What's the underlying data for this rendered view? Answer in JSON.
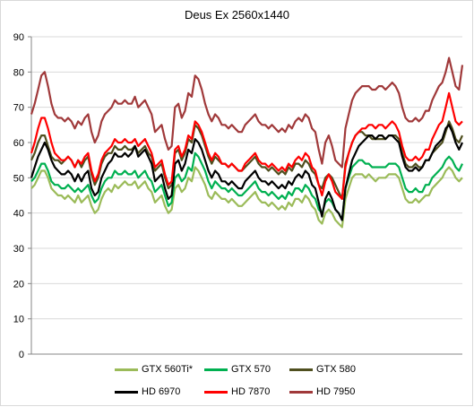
{
  "chart_data": {
    "type": "line",
    "title": "Deus Ex 2560x1440",
    "xlabel": "",
    "ylabel": "",
    "ylim": [
      0,
      90
    ],
    "yticks": [
      "0",
      "10",
      "20",
      "30",
      "40",
      "50",
      "60",
      "70",
      "80",
      "90"
    ],
    "grid": true,
    "legend_position": "bottom",
    "series": [
      {
        "name": "GTX 560Ti*",
        "color": "#9bbb59",
        "values": [
          47,
          48,
          50,
          52,
          52,
          50,
          47,
          46,
          45,
          45,
          44,
          45,
          44,
          43,
          45,
          43,
          44,
          45,
          42,
          40,
          41,
          44,
          46,
          47,
          46,
          48,
          47,
          48,
          49,
          48,
          48,
          49,
          47,
          48,
          49,
          47,
          46,
          43,
          44,
          45,
          42,
          40,
          41,
          47,
          48,
          46,
          47,
          50,
          49,
          53,
          52,
          50,
          48,
          45,
          44,
          46,
          45,
          44,
          44,
          43,
          44,
          43,
          42,
          42,
          43,
          44,
          45,
          46,
          44,
          43,
          43,
          42,
          43,
          42,
          41,
          42,
          41,
          43,
          42,
          44,
          44,
          43,
          45,
          44,
          42,
          41,
          38,
          37,
          40,
          41,
          40,
          38,
          37,
          36,
          44,
          47,
          50,
          51,
          51,
          51,
          50,
          51,
          50,
          49,
          50,
          50,
          50,
          51,
          51,
          51,
          50,
          47,
          44,
          43,
          43,
          44,
          43,
          44,
          45,
          45,
          47,
          48,
          49,
          50,
          52,
          53,
          52,
          50,
          49,
          50
        ]
      },
      {
        "name": "GTX 570",
        "color": "#00b050",
        "values": [
          49,
          50,
          52,
          54,
          54,
          52,
          49,
          48,
          48,
          47,
          47,
          48,
          47,
          46,
          47,
          46,
          47,
          48,
          45,
          43,
          44,
          47,
          49,
          50,
          50,
          52,
          51,
          51,
          52,
          51,
          51,
          52,
          50,
          51,
          52,
          50,
          49,
          46,
          47,
          48,
          45,
          42,
          43,
          50,
          51,
          49,
          50,
          53,
          52,
          57,
          56,
          54,
          52,
          49,
          47,
          49,
          48,
          47,
          47,
          46,
          47,
          46,
          45,
          45,
          46,
          47,
          48,
          49,
          47,
          46,
          46,
          45,
          46,
          45,
          44,
          45,
          44,
          46,
          45,
          47,
          47,
          46,
          48,
          47,
          45,
          44,
          41,
          40,
          43,
          44,
          43,
          41,
          40,
          38,
          47,
          50,
          53,
          54,
          55,
          55,
          54,
          54,
          53,
          53,
          53,
          53,
          53,
          54,
          54,
          54,
          53,
          50,
          47,
          46,
          46,
          47,
          46,
          46,
          48,
          48,
          50,
          51,
          52,
          53,
          55,
          56,
          55,
          53,
          52,
          54
        ]
      },
      {
        "name": "GTX 580",
        "color": "#4f4f1f",
        "values": [
          55,
          57,
          60,
          62,
          62,
          59,
          56,
          55,
          55,
          54,
          55,
          56,
          55,
          53,
          55,
          53,
          55,
          56,
          51,
          48,
          50,
          54,
          56,
          57,
          57,
          59,
          58,
          58,
          59,
          58,
          58,
          59,
          57,
          58,
          59,
          57,
          56,
          52,
          53,
          54,
          50,
          47,
          48,
          57,
          58,
          55,
          57,
          61,
          60,
          65,
          64,
          62,
          59,
          56,
          54,
          56,
          55,
          54,
          54,
          53,
          54,
          53,
          52,
          52,
          53,
          54,
          55,
          56,
          54,
          53,
          53,
          52,
          53,
          52,
          51,
          52,
          51,
          53,
          52,
          54,
          54,
          53,
          55,
          54,
          52,
          51,
          48,
          47,
          50,
          51,
          50,
          48,
          46,
          44,
          54,
          57,
          60,
          62,
          63,
          63,
          62,
          62,
          61,
          61,
          61,
          61,
          61,
          62,
          62,
          62,
          61,
          57,
          54,
          53,
          53,
          54,
          53,
          53,
          55,
          55,
          57,
          58,
          59,
          60,
          63,
          66,
          64,
          61,
          60,
          62
        ]
      },
      {
        "name": "HD 6970",
        "color": "#000000",
        "values": [
          50,
          53,
          56,
          58,
          60,
          58,
          55,
          53,
          52,
          51,
          51,
          52,
          51,
          49,
          51,
          49,
          51,
          52,
          47,
          45,
          46,
          50,
          52,
          54,
          55,
          57,
          56,
          56,
          57,
          56,
          57,
          59,
          56,
          57,
          58,
          56,
          54,
          49,
          50,
          51,
          47,
          44,
          45,
          54,
          55,
          52,
          54,
          58,
          57,
          61,
          60,
          58,
          55,
          52,
          50,
          52,
          51,
          49,
          49,
          48,
          49,
          48,
          47,
          47,
          49,
          50,
          51,
          52,
          50,
          49,
          49,
          48,
          49,
          48,
          47,
          48,
          47,
          49,
          48,
          50,
          51,
          50,
          52,
          51,
          48,
          47,
          43,
          39,
          44,
          46,
          44,
          41,
          40,
          38,
          47,
          51,
          55,
          57,
          59,
          60,
          61,
          62,
          62,
          61,
          62,
          62,
          61,
          62,
          62,
          61,
          60,
          56,
          53,
          52,
          52,
          53,
          52,
          53,
          55,
          55,
          57,
          59,
          60,
          61,
          64,
          65,
          63,
          60,
          58,
          60
        ]
      },
      {
        "name": "HD 7870",
        "color": "#ff0000",
        "values": [
          57,
          60,
          64,
          67,
          67,
          64,
          60,
          57,
          56,
          55,
          55,
          56,
          55,
          53,
          55,
          54,
          56,
          57,
          52,
          49,
          51,
          55,
          57,
          58,
          59,
          61,
          60,
          60,
          61,
          60,
          60,
          61,
          59,
          60,
          61,
          59,
          57,
          53,
          54,
          55,
          51,
          48,
          49,
          58,
          59,
          56,
          58,
          62,
          61,
          66,
          65,
          63,
          60,
          57,
          55,
          57,
          56,
          54,
          54,
          53,
          54,
          53,
          52,
          52,
          54,
          55,
          56,
          57,
          55,
          54,
          54,
          53,
          54,
          53,
          52,
          53,
          52,
          54,
          53,
          55,
          56,
          55,
          57,
          56,
          53,
          52,
          48,
          45,
          49,
          51,
          49,
          46,
          45,
          44,
          53,
          57,
          60,
          62,
          63,
          64,
          64,
          65,
          65,
          64,
          65,
          65,
          64,
          65,
          66,
          65,
          63,
          59,
          56,
          55,
          55,
          56,
          55,
          56,
          58,
          58,
          61,
          63,
          65,
          66,
          70,
          74,
          70,
          66,
          65,
          66
        ]
      },
      {
        "name": "HD 7950",
        "color": "#a0393a",
        "values": [
          68,
          71,
          75,
          79,
          80,
          76,
          71,
          68,
          67,
          67,
          66,
          67,
          66,
          64,
          66,
          65,
          67,
          68,
          63,
          60,
          62,
          66,
          68,
          69,
          70,
          72,
          71,
          71,
          72,
          71,
          71,
          73,
          70,
          71,
          72,
          70,
          68,
          63,
          64,
          65,
          61,
          58,
          59,
          70,
          71,
          67,
          69,
          74,
          73,
          79,
          78,
          75,
          71,
          68,
          66,
          68,
          67,
          65,
          65,
          64,
          65,
          64,
          63,
          63,
          65,
          66,
          67,
          68,
          66,
          65,
          65,
          64,
          65,
          64,
          63,
          64,
          63,
          65,
          64,
          66,
          67,
          66,
          68,
          67,
          64,
          63,
          58,
          54,
          60,
          62,
          59,
          55,
          54,
          53,
          64,
          68,
          72,
          74,
          75,
          76,
          76,
          76,
          75,
          75,
          76,
          76,
          75,
          76,
          77,
          76,
          74,
          70,
          67,
          66,
          66,
          67,
          66,
          67,
          69,
          69,
          72,
          74,
          76,
          77,
          80,
          84,
          80,
          76,
          75,
          82
        ]
      }
    ]
  }
}
